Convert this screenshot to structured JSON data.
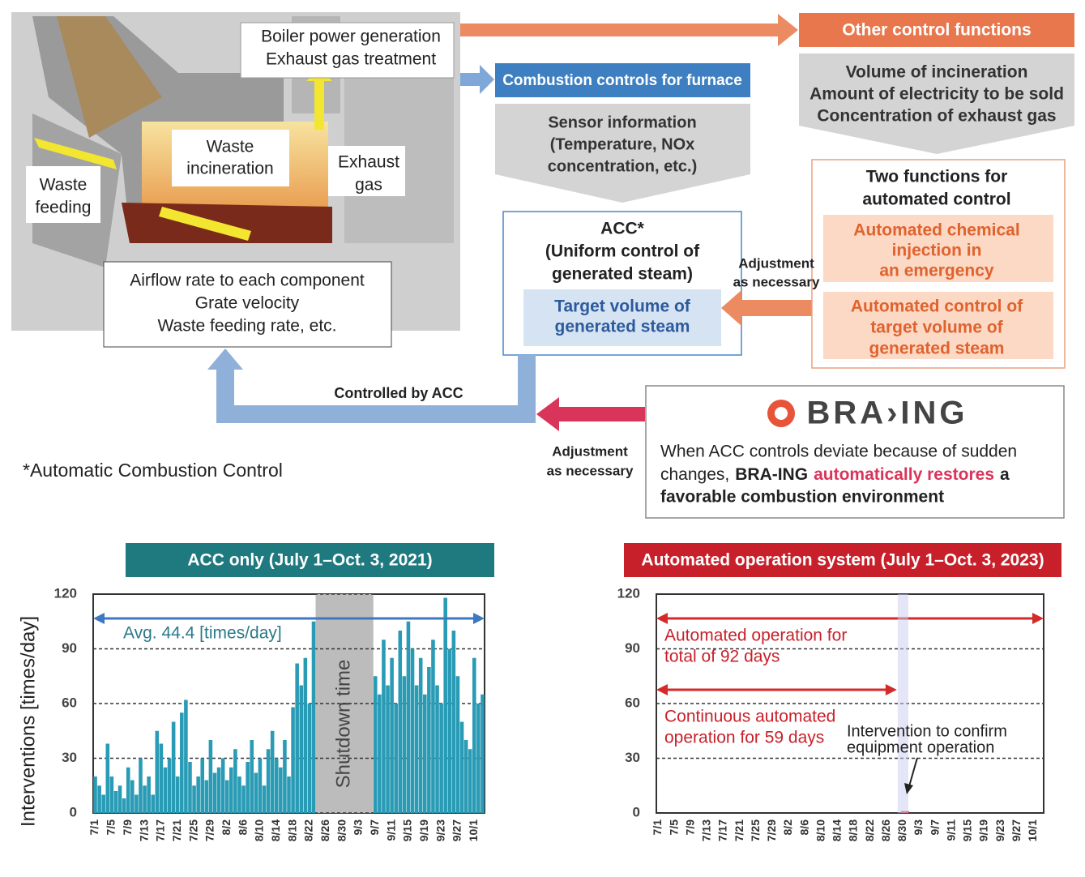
{
  "diagram": {
    "boiler": [
      "Boiler power generation",
      "Exhaust gas treatment"
    ],
    "waste_incineration": [
      "Waste",
      "incineration"
    ],
    "exhaust_gas": [
      "Exhaust",
      "gas"
    ],
    "waste_feeding": [
      "Waste",
      "feeding"
    ],
    "airflow": [
      "Airflow rate to each component",
      "Grate velocity",
      "Waste feeding rate, etc."
    ],
    "combustion_header": "Combustion controls for furnace",
    "sensor": [
      "Sensor information",
      "(Temperature, NOx",
      "concentration, etc.)"
    ],
    "acc_title": [
      "ACC*",
      "(Uniform control of",
      "generated steam)"
    ],
    "acc_target": [
      "Target volume of",
      "generated steam"
    ],
    "adjustment_1": [
      "Adjustment",
      "as necessary"
    ],
    "other_header": "Other control functions",
    "other_items": [
      "Volume of incineration",
      "Amount of electricity to be sold",
      "Concentration of exhaust gas"
    ],
    "two_functions": [
      "Two functions for",
      "automated control"
    ],
    "function_1": [
      "Automated chemical",
      "injection in",
      "an emergency"
    ],
    "function_2": [
      "Automated control of",
      "target volume of",
      "generated steam"
    ],
    "controlled_by": "Controlled by ACC",
    "adjustment_2": [
      "Adjustment",
      "as necessary"
    ],
    "braing_logo": "BRA›ING",
    "braing_text": {
      "line1": "When ACC controls deviate because of sudden",
      "line2": [
        "changes,",
        "BRA-ING",
        "automatically restores",
        "a"
      ],
      "line3": "favorable combustion environment"
    },
    "footnote": "*Automatic Combustion Control"
  },
  "chart_data": [
    {
      "type": "bar",
      "title": "ACC only (July 1–Oct. 3, 2021)",
      "title_color": "#1f7a80",
      "color": "#2a9bb5",
      "y_label": "Interventions [times/day]",
      "categories": [
        "7/1",
        null,
        null,
        null,
        "7/5",
        null,
        null,
        null,
        "7/9",
        null,
        null,
        null,
        "7/13",
        null,
        null,
        null,
        "7/17",
        null,
        null,
        null,
        "7/21",
        null,
        null,
        null,
        "7/25",
        null,
        null,
        null,
        "7/29",
        null,
        null,
        null,
        "8/2",
        null,
        null,
        null,
        "8/6",
        null,
        null,
        null,
        "8/10",
        null,
        null,
        null,
        "8/14",
        null,
        null,
        null,
        "8/18",
        null,
        null,
        null,
        "8/22",
        null,
        null,
        null,
        "8/26",
        null,
        null,
        null,
        "8/30",
        null,
        null,
        null,
        "9/3",
        null,
        null,
        null,
        "9/7",
        null,
        null,
        null,
        "9/11",
        null,
        null,
        null,
        "9/15",
        null,
        null,
        null,
        "9/19",
        null,
        null,
        null,
        "9/23",
        null,
        null,
        null,
        "9/27",
        null,
        null,
        null,
        "10/1",
        null,
        null
      ],
      "values": [
        20,
        15,
        10,
        38,
        20,
        12,
        15,
        8,
        25,
        18,
        10,
        30,
        15,
        20,
        10,
        45,
        38,
        25,
        30,
        50,
        20,
        55,
        62,
        28,
        15,
        20,
        30,
        18,
        40,
        22,
        25,
        30,
        18,
        25,
        35,
        20,
        15,
        28,
        40,
        22,
        30,
        15,
        35,
        45,
        30,
        25,
        40,
        20,
        58,
        82,
        70,
        85,
        60,
        105,
        null,
        null,
        null,
        null,
        null,
        null,
        null,
        null,
        null,
        null,
        null,
        null,
        null,
        null,
        75,
        65,
        95,
        70,
        85,
        60,
        100,
        75,
        105,
        90,
        70,
        85,
        65,
        80,
        95,
        70,
        60,
        118,
        90,
        100,
        75,
        50,
        40,
        35,
        85,
        60,
        65
      ],
      "ylim": [
        0,
        120
      ],
      "yticks": [
        0,
        30,
        60,
        90,
        120
      ],
      "grid": true,
      "annotations": {
        "average": "Avg. 44.4 [times/day]",
        "shutdown": "Shutdown time"
      }
    },
    {
      "type": "bar",
      "title": "Automated operation system (July 1–Oct. 3, 2023)",
      "title_color": "#c8202a",
      "color": "#d42a2a",
      "categories": [
        "7/1",
        null,
        null,
        null,
        "7/5",
        null,
        null,
        null,
        "7/9",
        null,
        null,
        null,
        "7/13",
        null,
        null,
        null,
        "7/17",
        null,
        null,
        null,
        "7/21",
        null,
        null,
        null,
        "7/25",
        null,
        null,
        null,
        "7/29",
        null,
        null,
        null,
        "8/2",
        null,
        null,
        null,
        "8/6",
        null,
        null,
        null,
        "8/10",
        null,
        null,
        null,
        "8/14",
        null,
        null,
        null,
        "8/18",
        null,
        null,
        null,
        "8/22",
        null,
        null,
        null,
        "8/26",
        null,
        null,
        null,
        "8/30",
        null,
        null,
        null,
        "9/3",
        null,
        null,
        null,
        "9/7",
        null,
        null,
        null,
        "9/11",
        null,
        null,
        null,
        "9/15",
        null,
        null,
        null,
        "9/19",
        null,
        null,
        null,
        "9/23",
        null,
        null,
        null,
        "9/27",
        null,
        null,
        null,
        "10/1",
        null,
        null
      ],
      "values": [
        0,
        0,
        0,
        0,
        0,
        0,
        0,
        0,
        0,
        0,
        0,
        0,
        0,
        0,
        0,
        0,
        0,
        0,
        0,
        0,
        0,
        0,
        0,
        0,
        0,
        0,
        0,
        0,
        0,
        0,
        0,
        0,
        0,
        0,
        0,
        0,
        0,
        0,
        0,
        0,
        0,
        0,
        0,
        0,
        0,
        0,
        0,
        0,
        0,
        0,
        0,
        0,
        0,
        0,
        0,
        0,
        0,
        0,
        0,
        0,
        1,
        1,
        0,
        0,
        0,
        0,
        0,
        0,
        0,
        0,
        0,
        0,
        0,
        0,
        0,
        0,
        0,
        0,
        0,
        0,
        0,
        0,
        0,
        0,
        0,
        0,
        0,
        0,
        0,
        0,
        0,
        0,
        0,
        0,
        0
      ],
      "ylim": [
        0,
        120
      ],
      "yticks": [
        0,
        30,
        60,
        90,
        120
      ],
      "grid": true,
      "annotations": {
        "total": [
          "Automated operation for",
          "total of 92 days"
        ],
        "continuous": [
          "Continuous automated",
          "operation for 59 days"
        ],
        "intervention": [
          "Intervention to confirm",
          "equipment operation"
        ]
      }
    }
  ]
}
